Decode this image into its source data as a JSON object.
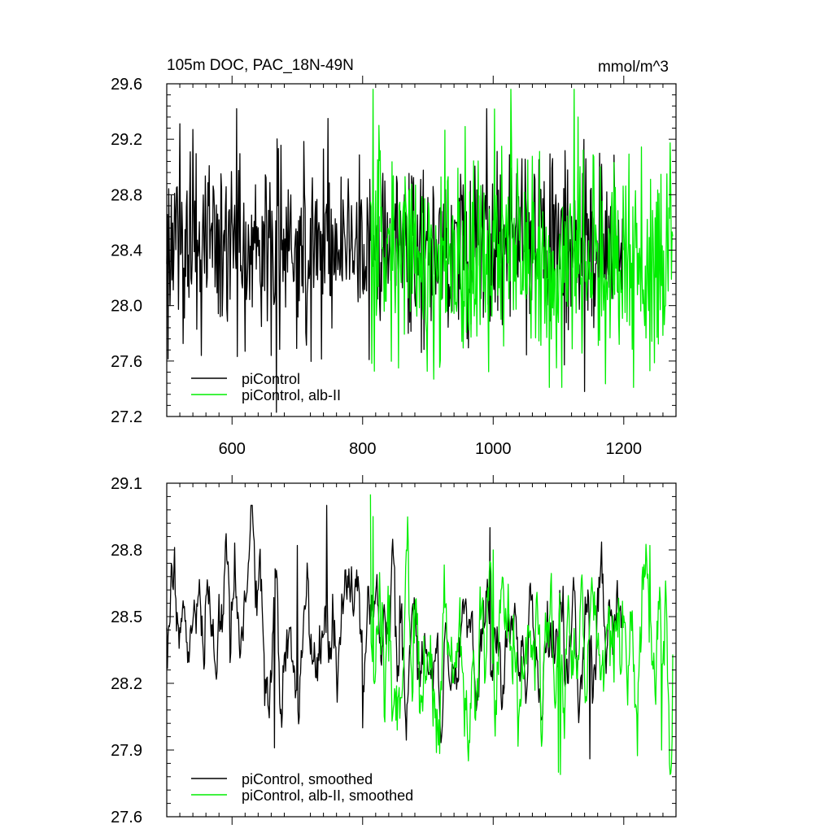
{
  "chart_data": [
    {
      "type": "line",
      "title": "105m DOC, PAC_18N-49N",
      "units": "mmol/m^3",
      "xlabel": "",
      "ylabel": "",
      "xlim": [
        500,
        1280
      ],
      "ylim": [
        27.2,
        29.6
      ],
      "xticks": [
        600,
        800,
        1000,
        1200
      ],
      "xtick_labels": [
        "600",
        "800",
        "1000",
        "1200"
      ],
      "yticks": [
        27.2,
        27.6,
        28.0,
        28.4,
        28.8,
        29.2,
        29.6
      ],
      "ytick_labels": [
        "27.2",
        "27.6",
        "28.0",
        "28.4",
        "28.8",
        "29.2",
        "29.6"
      ],
      "grid": false,
      "legend_position": "bottom-left",
      "series": [
        {
          "name": "piControl",
          "color": "#000000",
          "x_start": 500,
          "x_end": 1199,
          "mean": 28.45,
          "sd": 0.33,
          "min": 27.23,
          "max": 29.42,
          "smooth": 0,
          "anchors": [
            [
              500,
              28.3
            ],
            [
              505,
              28.0
            ],
            [
              540,
              29.27
            ],
            [
              553,
              27.64
            ],
            [
              620,
              27.67
            ],
            [
              660,
              27.64
            ],
            [
              668,
              27.23
            ],
            [
              747,
              29.35
            ],
            [
              810,
              27.61
            ],
            [
              990,
              29.42
            ],
            [
              1140,
              27.38
            ],
            [
              1199,
              28.4
            ]
          ]
        },
        {
          "name": "piControl, alb-II",
          "color": "#00ee00",
          "x_start": 812,
          "x_end": 1275,
          "mean": 28.35,
          "sd": 0.38,
          "min": 27.41,
          "max": 29.56,
          "smooth": 0,
          "anchors": [
            [
              812,
              28.75
            ],
            [
              816,
              29.56
            ],
            [
              825,
              29.3
            ],
            [
              855,
              27.55
            ],
            [
              1105,
              27.41
            ],
            [
              1130,
              29.36
            ],
            [
              1240,
              27.53
            ],
            [
              1275,
              28.5
            ]
          ]
        }
      ]
    },
    {
      "type": "line",
      "title": "",
      "xlabel": "",
      "ylabel": "",
      "xlim": [
        500,
        1280
      ],
      "ylim": [
        27.6,
        29.1
      ],
      "xticks": [
        600,
        800,
        1000,
        1200
      ],
      "xtick_labels": [
        "",
        "",
        "",
        ""
      ],
      "yticks": [
        27.6,
        27.9,
        28.2,
        28.5,
        28.8,
        29.1
      ],
      "ytick_labels": [
        "27.6",
        "27.9",
        "28.2",
        "28.5",
        "28.8",
        "29.1"
      ],
      "grid": false,
      "legend_position": "bottom-left",
      "series": [
        {
          "name": "piControl, smoothed",
          "color": "#000000",
          "x_start": 500,
          "x_end": 1199,
          "mean": 28.42,
          "sd": 0.18,
          "min": 27.86,
          "max": 29.0,
          "smooth": 3,
          "anchors": [
            [
              500,
              28.45
            ],
            [
              580,
              28.6
            ],
            [
              650,
              28.1
            ],
            [
              665,
              27.91
            ],
            [
              700,
              28.82
            ],
            [
              745,
              29.0
            ],
            [
              800,
              28.0
            ],
            [
              995,
              28.9
            ],
            [
              1148,
              27.86
            ],
            [
              1199,
              28.45
            ]
          ]
        },
        {
          "name": "piControl, alb-II, smoothed",
          "color": "#00ee00",
          "x_start": 812,
          "x_end": 1275,
          "mean": 28.34,
          "sd": 0.2,
          "min": 27.79,
          "max": 29.05,
          "smooth": 3,
          "anchors": [
            [
              812,
              29.05
            ],
            [
              816,
              28.95
            ],
            [
              840,
              28.3
            ],
            [
              1000,
              28.8
            ],
            [
              1100,
              27.8
            ],
            [
              1103,
              27.79
            ],
            [
              1240,
              28.82
            ],
            [
              1258,
              27.9
            ],
            [
              1275,
              28.33
            ]
          ]
        }
      ]
    }
  ]
}
